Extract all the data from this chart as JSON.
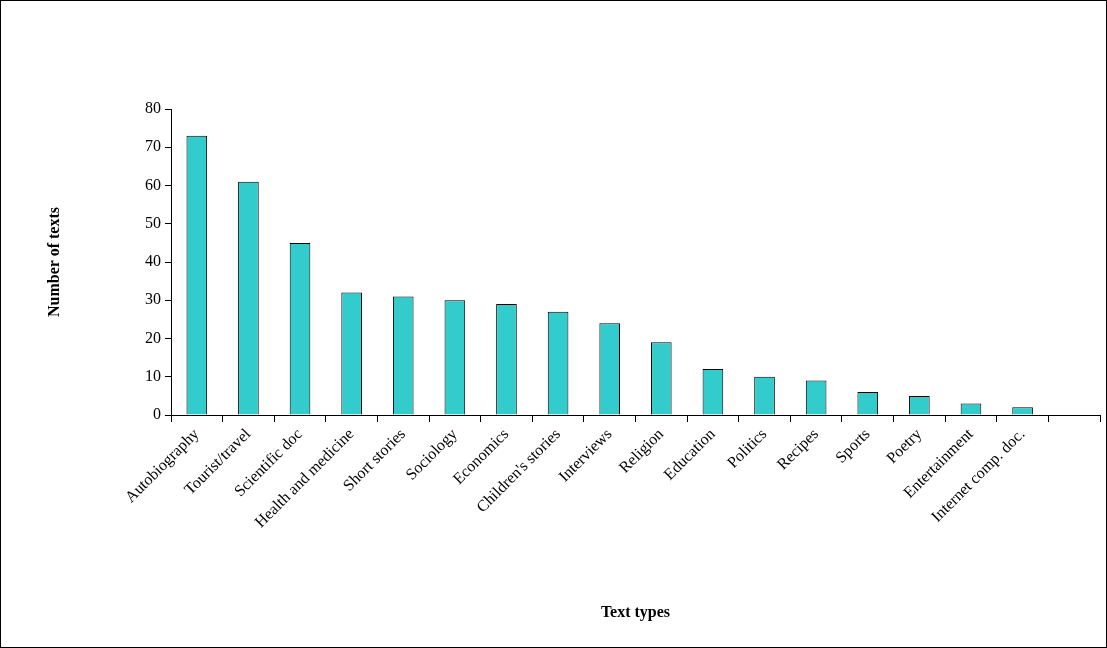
{
  "chart_data": {
    "type": "bar",
    "xlabel": "Text types",
    "ylabel": "Number of texts",
    "categories": [
      "Autobiography",
      "Tourist/travel",
      "Scientific doc",
      "Health and medicine",
      "Short stories",
      "Sociology",
      "Economics",
      "Children's stories",
      "Interviews",
      "Religion",
      "Education",
      "Politics",
      "Recipes",
      "Sports",
      "Poetry",
      "Entertainment",
      "Internet comp. doc.",
      null
    ],
    "values": [
      73,
      61,
      45,
      32,
      31,
      30,
      29,
      27,
      24,
      19,
      12,
      10,
      9,
      6,
      5,
      3,
      2,
      null
    ],
    "color": "#33cccc",
    "ylim": [
      0,
      80
    ],
    "yticks": [
      0,
      10,
      20,
      30,
      40,
      50,
      60,
      70,
      80
    ],
    "grid": false,
    "legend": false
  }
}
